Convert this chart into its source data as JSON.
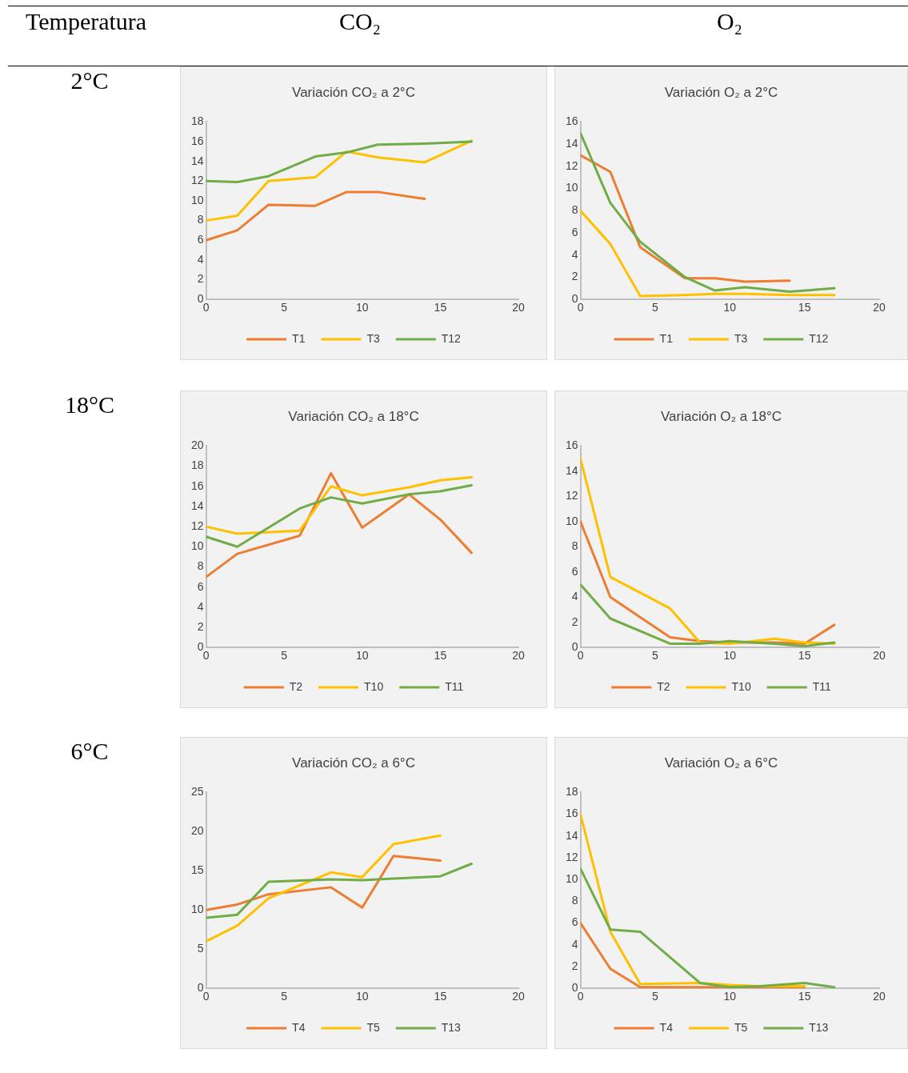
{
  "chart_data": [
    {
      "type": "other",
      "annotations": [
        "Temperatura",
        "CO₂",
        "O₂",
        "2°C",
        "18°C",
        "6°C"
      ]
    },
    {
      "type": "line",
      "title": "Variación CO₂ a 2°C",
      "xlim": [
        0,
        20
      ],
      "xticks": [
        0,
        5,
        10,
        15,
        20
      ],
      "ylim": [
        0,
        18
      ],
      "yticks": [
        0,
        2,
        4,
        6,
        8,
        10,
        12,
        14,
        16,
        18
      ],
      "legend": "bottom",
      "marker": "none",
      "line_style": "solid",
      "series": [
        {
          "name": "T1",
          "color": "#ed7d31",
          "x": [
            0,
            2,
            4,
            7,
            9,
            11,
            14
          ],
          "values": [
            6,
            7,
            9.6,
            9.5,
            10.9,
            10.9,
            10.2
          ]
        },
        {
          "name": "T3",
          "color": "#ffc000",
          "x": [
            0,
            2,
            4,
            7,
            9,
            11,
            14,
            17
          ],
          "values": [
            8,
            8.5,
            12,
            12.4,
            15,
            14.4,
            13.9,
            16.1
          ]
        },
        {
          "name": "T12",
          "color": "#70ad47",
          "x": [
            0,
            2,
            4,
            7,
            9,
            11,
            14,
            17
          ],
          "values": [
            12,
            11.9,
            12.5,
            14.5,
            14.9,
            15.7,
            15.8,
            16
          ]
        }
      ]
    },
    {
      "type": "line",
      "title": "Variación O₂ a 2°C",
      "xlim": [
        0,
        20
      ],
      "xticks": [
        0,
        5,
        10,
        15,
        20
      ],
      "ylim": [
        0,
        16
      ],
      "yticks": [
        0,
        2,
        4,
        6,
        8,
        10,
        12,
        14,
        16
      ],
      "legend": "bottom",
      "marker": "none",
      "line_style": "solid",
      "series": [
        {
          "name": "T1",
          "color": "#ed7d31",
          "x": [
            0,
            2,
            4,
            7,
            9,
            11,
            14
          ],
          "values": [
            13,
            11.5,
            4.7,
            1.9,
            1.9,
            1.6,
            1.7
          ]
        },
        {
          "name": "T3",
          "color": "#ffc000",
          "x": [
            0,
            2,
            4,
            7,
            9,
            11,
            14,
            17
          ],
          "values": [
            8,
            5,
            0.3,
            0.4,
            0.5,
            0.5,
            0.4,
            0.4
          ]
        },
        {
          "name": "T12",
          "color": "#70ad47",
          "x": [
            0,
            2,
            4,
            7,
            9,
            11,
            14,
            17
          ],
          "values": [
            15,
            8.7,
            5.2,
            2,
            0.8,
            1.1,
            0.7,
            1
          ]
        }
      ]
    },
    {
      "type": "line",
      "title": "Variación CO₂ a 18°C",
      "xlim": [
        0,
        20
      ],
      "xticks": [
        0,
        5,
        10,
        15,
        20
      ],
      "ylim": [
        0,
        20
      ],
      "yticks": [
        0,
        2,
        4,
        6,
        8,
        10,
        12,
        14,
        16,
        18,
        20
      ],
      "legend": "bottom",
      "marker": "none",
      "line_style": "solid",
      "series": [
        {
          "name": "T2",
          "color": "#ed7d31",
          "x": [
            0,
            2,
            6,
            8,
            10,
            13,
            15,
            17
          ],
          "values": [
            7,
            9.3,
            11.1,
            17.3,
            11.9,
            15.2,
            12.7,
            9.4
          ]
        },
        {
          "name": "T10",
          "color": "#ffc000",
          "x": [
            0,
            2,
            6,
            8,
            10,
            13,
            15,
            17
          ],
          "values": [
            12,
            11.3,
            11.6,
            16,
            15.1,
            15.9,
            16.6,
            16.9
          ]
        },
        {
          "name": "T11",
          "color": "#70ad47",
          "x": [
            0,
            2,
            6,
            8,
            10,
            13,
            15,
            17
          ],
          "values": [
            11,
            10,
            13.8,
            14.9,
            14.3,
            15.2,
            15.5,
            16.1
          ]
        }
      ]
    },
    {
      "type": "line",
      "title": "Variación O₂ a 18°C",
      "xlim": [
        0,
        20
      ],
      "xticks": [
        0,
        5,
        10,
        15,
        20
      ],
      "ylim": [
        0,
        16
      ],
      "yticks": [
        0,
        2,
        4,
        6,
        8,
        10,
        12,
        14,
        16
      ],
      "legend": "bottom",
      "marker": "none",
      "line_style": "solid",
      "series": [
        {
          "name": "T2",
          "color": "#ed7d31",
          "x": [
            0,
            2,
            6,
            8,
            10,
            13,
            15,
            17
          ],
          "values": [
            10,
            4,
            0.8,
            0.5,
            0.4,
            0.4,
            0.3,
            1.8
          ]
        },
        {
          "name": "T10",
          "color": "#ffc000",
          "x": [
            0,
            2,
            6,
            8,
            10,
            13,
            15,
            17
          ],
          "values": [
            15,
            5.6,
            3.1,
            0.4,
            0.3,
            0.7,
            0.4,
            0.3
          ]
        },
        {
          "name": "T11",
          "color": "#70ad47",
          "x": [
            0,
            2,
            6,
            8,
            10,
            13,
            15,
            17
          ],
          "values": [
            5,
            2.3,
            0.3,
            0.3,
            0.5,
            0.3,
            0.1,
            0.4
          ]
        }
      ]
    },
    {
      "type": "line",
      "title": "Variación CO₂ a 6°C",
      "xlim": [
        0,
        20
      ],
      "xticks": [
        0,
        5,
        10,
        15,
        20
      ],
      "ylim": [
        0,
        25
      ],
      "yticks": [
        0,
        5,
        10,
        15,
        20,
        25
      ],
      "legend": "bottom",
      "marker": "none",
      "line_style": "solid",
      "series": [
        {
          "name": "T4",
          "color": "#ed7d31",
          "x": [
            0,
            2,
            4,
            8,
            10,
            12,
            15
          ],
          "values": [
            10,
            10.7,
            12,
            12.9,
            10.3,
            16.9,
            16.3
          ]
        },
        {
          "name": "T5",
          "color": "#ffc000",
          "x": [
            0,
            2,
            4,
            8,
            10,
            12,
            15
          ],
          "values": [
            6,
            8,
            11.5,
            14.8,
            14.2,
            18.4,
            19.5
          ]
        },
        {
          "name": "T13",
          "color": "#70ad47",
          "x": [
            0,
            2,
            4,
            8,
            10,
            12,
            15,
            17
          ],
          "values": [
            9,
            9.4,
            13.6,
            13.9,
            13.8,
            14,
            14.3,
            15.9
          ]
        }
      ]
    },
    {
      "type": "line",
      "title": "Variación O₂ a 6°C",
      "xlim": [
        0,
        20
      ],
      "xticks": [
        0,
        5,
        10,
        15,
        20
      ],
      "ylim": [
        0,
        18
      ],
      "yticks": [
        0,
        2,
        4,
        6,
        8,
        10,
        12,
        14,
        16,
        18
      ],
      "legend": "bottom",
      "marker": "none",
      "line_style": "solid",
      "series": [
        {
          "name": "T4",
          "color": "#ed7d31",
          "x": [
            0,
            2,
            4,
            8,
            10,
            12,
            15
          ],
          "values": [
            6,
            1.8,
            0.1,
            0.1,
            0.1,
            0.1,
            0.1
          ]
        },
        {
          "name": "T5",
          "color": "#ffc000",
          "x": [
            0,
            2,
            4,
            8,
            10,
            12,
            15
          ],
          "values": [
            16,
            5.2,
            0.4,
            0.5,
            0.3,
            0.2,
            0.2
          ]
        },
        {
          "name": "T13",
          "color": "#70ad47",
          "x": [
            0,
            2,
            4,
            8,
            10,
            12,
            15,
            17
          ],
          "values": [
            11,
            5.4,
            5.2,
            0.5,
            0.1,
            0.2,
            0.5,
            0.1
          ]
        }
      ]
    }
  ]
}
